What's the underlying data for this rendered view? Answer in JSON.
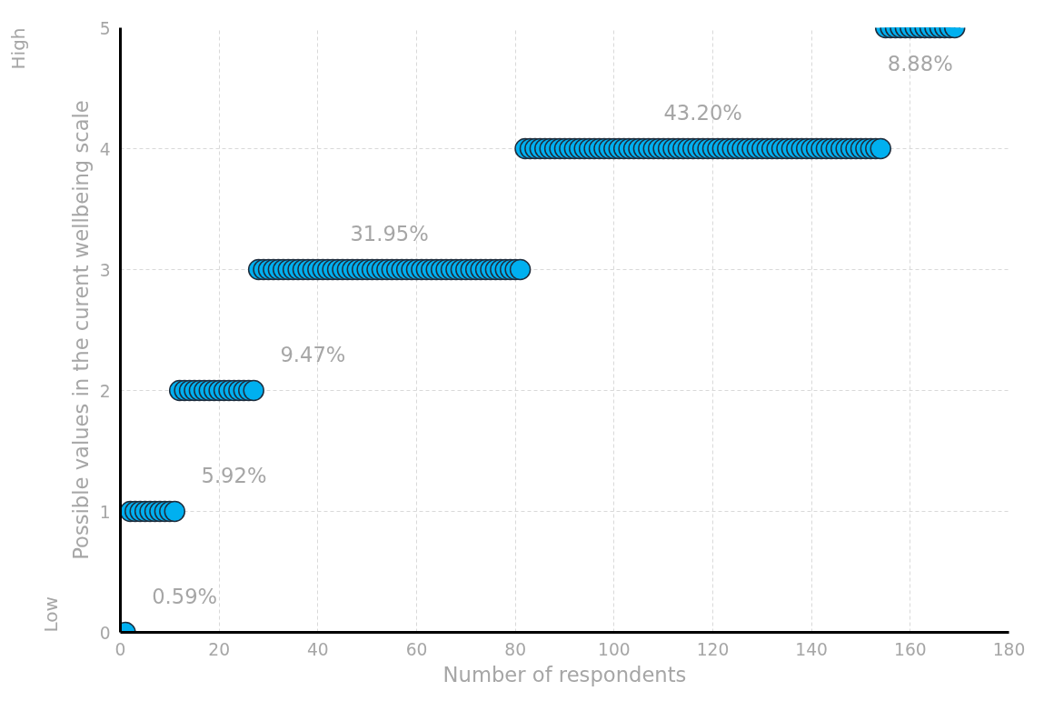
{
  "chart_data": {
    "type": "scatter",
    "xlabel": "Number of respondents",
    "ylabel": "Possible values in the curent wellbeing scale",
    "xlim": [
      0,
      180
    ],
    "xticks": [
      0,
      20,
      40,
      60,
      80,
      100,
      120,
      140,
      160,
      180
    ],
    "ylim": [
      0,
      5
    ],
    "yticks": [
      0,
      1,
      2,
      3,
      4,
      5
    ],
    "grid": true,
    "marker": "circle",
    "x": [
      1,
      2,
      3,
      4,
      5,
      6,
      7,
      8,
      9,
      10,
      11,
      12,
      13,
      14,
      15,
      16,
      17,
      18,
      19,
      20,
      21,
      22,
      23,
      24,
      25,
      26,
      27,
      28,
      29,
      30,
      31,
      32,
      33,
      34,
      35,
      36,
      37,
      38,
      39,
      40,
      41,
      42,
      43,
      44,
      45,
      46,
      47,
      48,
      49,
      50,
      51,
      52,
      53,
      54,
      55,
      56,
      57,
      58,
      59,
      60,
      61,
      62,
      63,
      64,
      65,
      66,
      67,
      68,
      69,
      70,
      71,
      72,
      73,
      74,
      75,
      76,
      77,
      78,
      79,
      80,
      81,
      82,
      83,
      84,
      85,
      86,
      87,
      88,
      89,
      90,
      91,
      92,
      93,
      94,
      95,
      96,
      97,
      98,
      99,
      100,
      101,
      102,
      103,
      104,
      105,
      106,
      107,
      108,
      109,
      110,
      111,
      112,
      113,
      114,
      115,
      116,
      117,
      118,
      119,
      120,
      121,
      122,
      123,
      124,
      125,
      126,
      127,
      128,
      129,
      130,
      131,
      132,
      133,
      134,
      135,
      136,
      137,
      138,
      139,
      140,
      141,
      142,
      143,
      144,
      145,
      146,
      147,
      148,
      149,
      150,
      151,
      152,
      153,
      154,
      155,
      156,
      157,
      158,
      159,
      160,
      161,
      162,
      163,
      164,
      165,
      166,
      167,
      168,
      169
    ],
    "series": [
      {
        "color": "#00b0f0",
        "values": [
          0,
          1,
          1,
          1,
          1,
          1,
          1,
          1,
          1,
          1,
          1,
          2,
          2,
          2,
          2,
          2,
          2,
          2,
          2,
          2,
          2,
          2,
          2,
          2,
          2,
          2,
          2,
          3,
          3,
          3,
          3,
          3,
          3,
          3,
          3,
          3,
          3,
          3,
          3,
          3,
          3,
          3,
          3,
          3,
          3,
          3,
          3,
          3,
          3,
          3,
          3,
          3,
          3,
          3,
          3,
          3,
          3,
          3,
          3,
          3,
          3,
          3,
          3,
          3,
          3,
          3,
          3,
          3,
          3,
          3,
          3,
          3,
          3,
          3,
          3,
          3,
          3,
          3,
          3,
          3,
          3,
          4,
          4,
          4,
          4,
          4,
          4,
          4,
          4,
          4,
          4,
          4,
          4,
          4,
          4,
          4,
          4,
          4,
          4,
          4,
          4,
          4,
          4,
          4,
          4,
          4,
          4,
          4,
          4,
          4,
          4,
          4,
          4,
          4,
          4,
          4,
          4,
          4,
          4,
          4,
          4,
          4,
          4,
          4,
          4,
          4,
          4,
          4,
          4,
          4,
          4,
          4,
          4,
          4,
          4,
          4,
          4,
          4,
          4,
          4,
          4,
          4,
          4,
          4,
          4,
          4,
          4,
          4,
          4,
          4,
          4,
          4,
          4,
          4,
          5,
          5,
          5,
          5,
          5,
          5,
          5,
          5,
          5,
          5,
          5,
          5,
          5,
          5,
          5
        ]
      }
    ],
    "annotations": [
      "0.59%",
      "5.92%",
      "9.47%",
      "31.95%",
      "43.20%",
      "8.88%",
      "Low",
      "High"
    ]
  }
}
